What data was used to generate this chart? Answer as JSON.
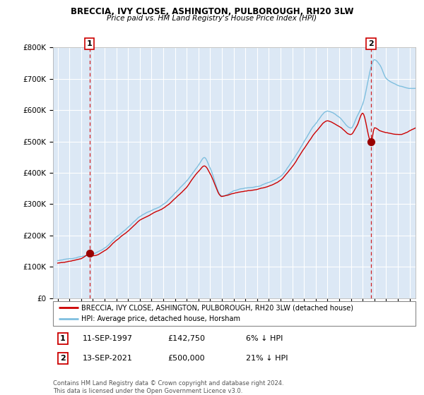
{
  "title": "BRECCIA, IVY CLOSE, ASHINGTON, PULBOROUGH, RH20 3LW",
  "subtitle": "Price paid vs. HM Land Registry's House Price Index (HPI)",
  "legend_line1": "BRECCIA, IVY CLOSE, ASHINGTON, PULBOROUGH, RH20 3LW (detached house)",
  "legend_line2": "HPI: Average price, detached house, Horsham",
  "annotation1_label": "1",
  "annotation1_date": "11-SEP-1997",
  "annotation1_price": "£142,750",
  "annotation1_hpi": "6% ↓ HPI",
  "annotation2_label": "2",
  "annotation2_date": "13-SEP-2021",
  "annotation2_price": "£500,000",
  "annotation2_hpi": "21% ↓ HPI",
  "footer": "Contains HM Land Registry data © Crown copyright and database right 2024.\nThis data is licensed under the Open Government Licence v3.0.",
  "sale1_year": 1997.71,
  "sale1_value": 142750,
  "sale2_year": 2021.71,
  "sale2_value": 500000,
  "hpi_color": "#7fbfdf",
  "price_color": "#cc0000",
  "sale_dot_color": "#990000",
  "dashed_line_color": "#cc0000",
  "chart_bg": "#dce8f5",
  "grid_color": "#ffffff",
  "ylim": [
    0,
    800000
  ],
  "xlim_start": 1994.6,
  "xlim_end": 2025.5,
  "yticks": [
    0,
    100000,
    200000,
    300000,
    400000,
    500000,
    600000,
    700000,
    800000
  ],
  "ytick_labels": [
    "£0",
    "£100K",
    "£200K",
    "£300K",
    "£400K",
    "£500K",
    "£600K",
    "£700K",
    "£800K"
  ]
}
